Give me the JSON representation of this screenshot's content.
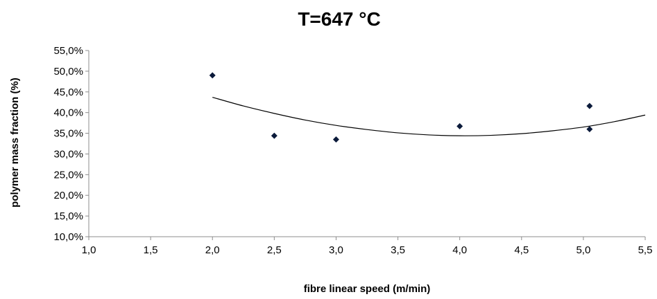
{
  "chart_data": {
    "type": "scatter",
    "title": "T=647 °C",
    "xlabel": "fibre linear speed (m/min)",
    "ylabel": "polymer mass fraction (%)",
    "xlim": [
      1.0,
      5.5
    ],
    "ylim": [
      10.0,
      55.0
    ],
    "x_ticks": [
      1.0,
      1.5,
      2.0,
      2.5,
      3.0,
      3.5,
      4.0,
      4.5,
      5.0,
      5.5
    ],
    "x_tick_labels": [
      "1,0",
      "1,5",
      "2,0",
      "2,5",
      "3,0",
      "3,5",
      "4,0",
      "4,5",
      "5,0",
      "5,5"
    ],
    "y_ticks": [
      10,
      15,
      20,
      25,
      30,
      35,
      40,
      45,
      50,
      55
    ],
    "y_tick_labels": [
      "10,0%",
      "15,0%",
      "20,0%",
      "25,0%",
      "30,0%",
      "35,0%",
      "40,0%",
      "45,0%",
      "50,0%",
      "55,0%"
    ],
    "grid": false,
    "legend": "none",
    "series": [
      {
        "marker": "diamond",
        "color": "#0b1a3a",
        "x": [
          2.0,
          2.5,
          3.0,
          4.0,
          5.05,
          5.05
        ],
        "y": [
          49.0,
          34.4,
          33.5,
          36.7,
          41.6,
          36.0
        ]
      }
    ],
    "trendline": {
      "type": "polynomial-2",
      "color": "#000000",
      "x": [
        2.0,
        2.25,
        2.5,
        2.75,
        3.0,
        3.25,
        3.5,
        3.75,
        4.0,
        4.25,
        4.5,
        4.75,
        5.0,
        5.25,
        5.5
      ],
      "y": [
        43.7,
        41.6,
        39.8,
        38.2,
        36.9,
        35.9,
        35.1,
        34.6,
        34.4,
        34.5,
        34.9,
        35.6,
        36.5,
        37.8,
        39.4
      ]
    }
  }
}
